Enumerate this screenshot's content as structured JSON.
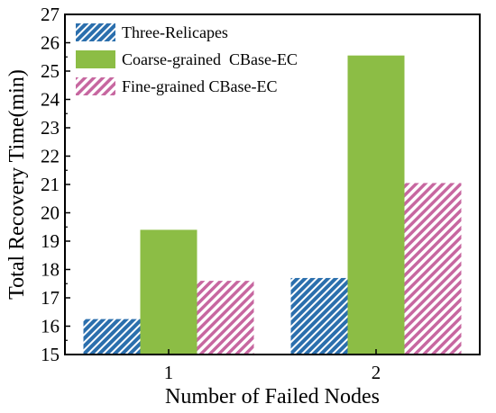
{
  "chart_data": {
    "type": "bar",
    "title": "",
    "xlabel": "Number of Failed Nodes",
    "ylabel": "Total Recovery Time(min)",
    "categories": [
      "1",
      "2"
    ],
    "ylim": [
      15,
      27
    ],
    "yticks": [
      "15",
      "16",
      "17",
      "18",
      "19",
      "20",
      "21",
      "22",
      "23",
      "24",
      "25",
      "26",
      "27"
    ],
    "grid": false,
    "legend_position": "top-left",
    "series": [
      {
        "name": "Three-Relicapes",
        "values": [
          16.25,
          17.7
        ],
        "color": "#2b6fad",
        "pattern": "hatch-dense"
      },
      {
        "name": "Coarse-grained  CBase-EC",
        "values": [
          19.4,
          25.55
        ],
        "color": "#8cbd45",
        "pattern": "solid"
      },
      {
        "name": "Fine-grained CBase-EC",
        "values": [
          17.6,
          21.05
        ],
        "color": "#c767a0",
        "pattern": "hatch-wide"
      }
    ]
  }
}
